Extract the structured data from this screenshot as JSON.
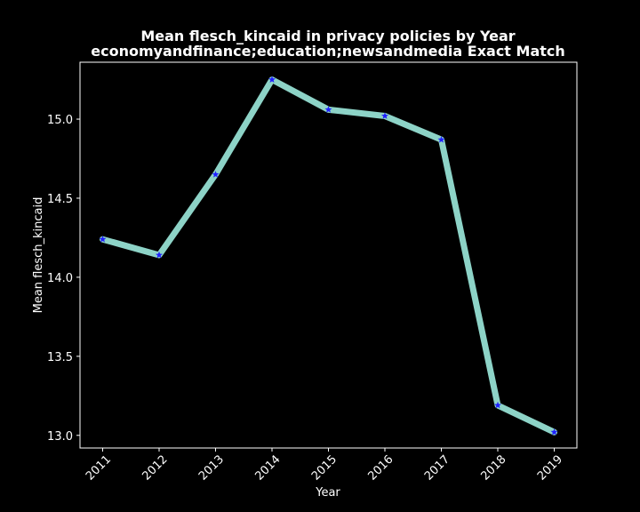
{
  "chart_data": {
    "type": "line",
    "title": "Mean flesch_kincaid in privacy policies by Year",
    "subtitle": "economyandfinance;education;newsandmedia Exact Match",
    "xlabel": "Year",
    "ylabel": "Mean flesch_kincaid",
    "x": [
      "2011",
      "2012",
      "2013",
      "2014",
      "2015",
      "2016",
      "2017",
      "2018",
      "2019"
    ],
    "values": [
      14.24,
      14.14,
      14.65,
      15.25,
      15.06,
      15.02,
      14.87,
      13.19,
      13.02
    ],
    "yticks": [
      "13.0",
      "13.5",
      "14.0",
      "14.5",
      "15.0"
    ],
    "ylim": [
      12.92,
      15.36
    ],
    "grid": false,
    "line_color": "#8dd3c7",
    "marker_color": "#1f1fff",
    "background": "#000000",
    "axes_color": "#ffffff"
  }
}
